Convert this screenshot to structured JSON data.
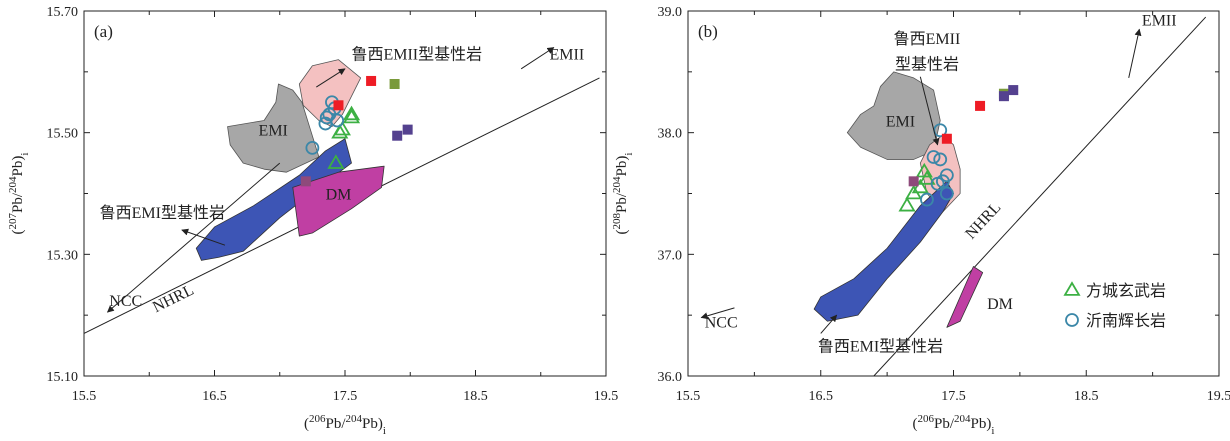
{
  "colors": {
    "emi_field": "#a7a7a7",
    "emii_field": "#f4c1c1",
    "dm_field": "#c03fa3",
    "luxi_emi_field": "#3d55b5",
    "triangle": "#3cb043",
    "circle": "#3b87a8",
    "square_red": "#ee1c25",
    "square_olive": "#7a9a3a",
    "square_purple": "#54418f",
    "square_mauve": "#8e4a7b"
  },
  "legend": {
    "placement": "bottom-right of panel (b)",
    "items": [
      {
        "symbol": "triangle",
        "label": "方城玄武岩"
      },
      {
        "symbol": "circle",
        "label": "沂南辉长岩"
      }
    ]
  },
  "chart_data": [
    {
      "type": "scatter",
      "panel_label": "(a)",
      "xlabel": {
        "pre": "(",
        "sup1": "206",
        "mid": "Pb/",
        "sup2": "204",
        "post": "Pb)",
        "sub": "i"
      },
      "ylabel": {
        "pre": "(",
        "sup1": "207",
        "mid": "Pb/",
        "sup2": "204",
        "post": "Pb)",
        "sub": "i"
      },
      "xlim": [
        15.5,
        19.5
      ],
      "ylim": [
        15.1,
        15.7
      ],
      "xticks": [
        "15.5",
        "16.5",
        "17.5",
        "18.5",
        "19.5"
      ],
      "yticks": [
        "15.10",
        "15.30",
        "15.50",
        "15.70"
      ],
      "grid": false,
      "reference_line": {
        "name": "NHRL",
        "from": [
          15.5,
          15.17
        ],
        "to": [
          19.45,
          15.59
        ]
      },
      "annotations": [
        {
          "text": "EMI",
          "x": 16.95,
          "y": 15.495
        },
        {
          "text": "DM",
          "x": 17.45,
          "y": 15.39
        },
        {
          "text": "NHRL",
          "x": 16.2,
          "y": 15.22
        },
        {
          "text": "NCC",
          "x": 15.82,
          "y": 15.215
        },
        {
          "text": "EMII",
          "x": 19.2,
          "y": 15.62
        },
        {
          "text": "鲁西EMII型基性岩",
          "x": 18.05,
          "y": 15.62
        },
        {
          "text": "鲁西EMI型基性岩",
          "x": 16.1,
          "y": 15.36
        }
      ],
      "arrows": [
        {
          "from": [
            17.0,
            15.45
          ],
          "to": [
            15.68,
            15.205
          ]
        },
        {
          "from": [
            18.85,
            15.605
          ],
          "to": [
            19.1,
            15.64
          ]
        },
        {
          "from": [
            17.28,
            15.575
          ],
          "to": [
            17.5,
            15.605
          ]
        },
        {
          "from": [
            16.58,
            15.315
          ],
          "to": [
            16.25,
            15.34
          ]
        }
      ],
      "fields": [
        {
          "name": "EMI",
          "points": [
            [
              16.6,
              15.51
            ],
            [
              16.88,
              15.52
            ],
            [
              16.97,
              15.55
            ],
            [
              16.99,
              15.58
            ],
            [
              17.1,
              15.57
            ],
            [
              17.17,
              15.55
            ],
            [
              17.3,
              15.46
            ],
            [
              17.05,
              15.435
            ],
            [
              16.88,
              15.44
            ],
            [
              16.72,
              15.45
            ],
            [
              16.62,
              15.48
            ]
          ]
        },
        {
          "name": "EMII",
          "points": [
            [
              17.15,
              15.58
            ],
            [
              17.25,
              15.61
            ],
            [
              17.45,
              15.62
            ],
            [
              17.62,
              15.59
            ],
            [
              17.55,
              15.56
            ],
            [
              17.48,
              15.53
            ],
            [
              17.4,
              15.51
            ],
            [
              17.3,
              15.52
            ],
            [
              17.18,
              15.545
            ]
          ]
        },
        {
          "name": "鲁西EMI型基性岩",
          "points": [
            [
              16.36,
              15.31
            ],
            [
              16.5,
              15.345
            ],
            [
              16.8,
              15.38
            ],
            [
              17.15,
              15.43
            ],
            [
              17.35,
              15.47
            ],
            [
              17.5,
              15.49
            ],
            [
              17.55,
              15.45
            ],
            [
              17.3,
              15.41
            ],
            [
              17.0,
              15.36
            ],
            [
              16.72,
              15.305
            ],
            [
              16.53,
              15.295
            ],
            [
              16.4,
              15.29
            ]
          ]
        },
        {
          "name": "DM",
          "points": [
            [
              17.1,
              15.41
            ],
            [
              17.45,
              15.435
            ],
            [
              17.8,
              15.445
            ],
            [
              17.78,
              15.41
            ],
            [
              17.55,
              15.375
            ],
            [
              17.25,
              15.335
            ],
            [
              17.15,
              15.33
            ]
          ]
        }
      ],
      "series": [
        {
          "name": "方城玄武岩",
          "marker": "triangle",
          "x": [
            17.55,
            17.55,
            17.48,
            17.46,
            17.43
          ],
          "y": [
            15.53,
            15.525,
            15.505,
            15.5,
            15.45
          ]
        },
        {
          "name": "沂南辉长岩",
          "marker": "circle",
          "x": [
            17.4,
            17.42,
            17.38,
            17.36,
            17.44,
            17.35,
            17.25
          ],
          "y": [
            15.55,
            15.54,
            15.53,
            15.525,
            15.52,
            15.515,
            15.475
          ]
        },
        {
          "marker": "square_red",
          "x": [
            17.7,
            17.45
          ],
          "y": [
            15.585,
            15.545
          ]
        },
        {
          "marker": "square_olive",
          "x": [
            17.88
          ],
          "y": [
            15.58
          ]
        },
        {
          "marker": "square_purple",
          "x": [
            17.9,
            17.98
          ],
          "y": [
            15.495,
            15.505
          ]
        },
        {
          "marker": "square_mauve",
          "x": [
            17.2
          ],
          "y": [
            15.42
          ]
        }
      ]
    },
    {
      "type": "scatter",
      "panel_label": "(b)",
      "xlabel": {
        "pre": "(",
        "sup1": "206",
        "mid": "Pb/",
        "sup2": "204",
        "post": "Pb)",
        "sub": "i"
      },
      "ylabel": {
        "pre": "(",
        "sup1": "208",
        "mid": "Pb/",
        "sup2": "204",
        "post": "Pb)",
        "sub": "i"
      },
      "xlim": [
        15.5,
        19.5
      ],
      "ylim": [
        36.0,
        39.0
      ],
      "xticks": [
        "15.5",
        "16.5",
        "17.5",
        "18.5",
        "19.5"
      ],
      "yticks": [
        "36.0",
        "37.0",
        "38.0",
        "39.0"
      ],
      "grid": false,
      "reference_line": {
        "name": "NHRL",
        "from": [
          16.9,
          36.0
        ],
        "to": [
          19.4,
          38.95
        ]
      },
      "annotations": [
        {
          "text": "EMI",
          "x": 17.1,
          "y": 38.05
        },
        {
          "text": "DM",
          "x": 17.85,
          "y": 36.55
        },
        {
          "text": "NHRL",
          "x": 17.75,
          "y": 37.25
        },
        {
          "text": "NCC",
          "x": 15.75,
          "y": 36.4
        },
        {
          "text": "EMII",
          "x": 19.05,
          "y": 38.88
        },
        {
          "text": "鲁西EMII",
          "x": 17.3,
          "y": 38.73
        },
        {
          "text": "型基性岩",
          "x": 17.3,
          "y": 38.52
        },
        {
          "text": "鲁西EMI型基性岩",
          "x": 16.95,
          "y": 36.2
        }
      ],
      "arrows": [
        {
          "from": [
            15.85,
            36.56
          ],
          "to": [
            15.6,
            36.48
          ]
        },
        {
          "from": [
            18.82,
            38.45
          ],
          "to": [
            18.9,
            38.85
          ]
        },
        {
          "from": [
            17.25,
            38.46
          ],
          "to": [
            17.38,
            37.9
          ]
        },
        {
          "from": [
            16.5,
            36.35
          ],
          "to": [
            16.62,
            36.5
          ]
        }
      ],
      "fields": [
        {
          "name": "EMI",
          "points": [
            [
              16.95,
              38.38
            ],
            [
              17.05,
              38.5
            ],
            [
              17.2,
              38.45
            ],
            [
              17.35,
              38.35
            ],
            [
              17.4,
              38.1
            ],
            [
              17.35,
              37.85
            ],
            [
              17.2,
              37.78
            ],
            [
              17.0,
              37.78
            ],
            [
              16.8,
              37.88
            ],
            [
              16.7,
              38.0
            ],
            [
              16.8,
              38.15
            ],
            [
              16.9,
              38.22
            ]
          ]
        },
        {
          "name": "EMII",
          "points": [
            [
              17.32,
              37.9
            ],
            [
              17.42,
              37.98
            ],
            [
              17.5,
              37.9
            ],
            [
              17.55,
              37.7
            ],
            [
              17.55,
              37.5
            ],
            [
              17.42,
              37.35
            ],
            [
              17.3,
              37.5
            ],
            [
              17.25,
              37.75
            ]
          ]
        },
        {
          "name": "鲁西EMI型基性岩",
          "points": [
            [
              16.45,
              36.55
            ],
            [
              16.5,
              36.65
            ],
            [
              16.75,
              36.8
            ],
            [
              17.0,
              37.05
            ],
            [
              17.25,
              37.4
            ],
            [
              17.45,
              37.6
            ],
            [
              17.5,
              37.5
            ],
            [
              17.42,
              37.35
            ],
            [
              17.25,
              37.1
            ],
            [
              17.0,
              36.8
            ],
            [
              16.78,
              36.5
            ],
            [
              16.55,
              36.45
            ]
          ]
        },
        {
          "name": "DM",
          "points": [
            [
              17.45,
              36.4
            ],
            [
              17.65,
              36.9
            ],
            [
              17.72,
              36.85
            ],
            [
              17.55,
              36.45
            ]
          ]
        }
      ],
      "series": [
        {
          "name": "方城玄武岩",
          "marker": "triangle",
          "x": [
            17.28,
            17.3,
            17.25,
            17.2,
            17.15
          ],
          "y": [
            37.68,
            37.62,
            37.55,
            37.5,
            37.4
          ]
        },
        {
          "name": "沂南辉长岩",
          "marker": "circle",
          "x": [
            17.4,
            17.35,
            17.4,
            17.45,
            17.42,
            17.38,
            17.45,
            17.3
          ],
          "y": [
            38.02,
            37.8,
            37.78,
            37.65,
            37.6,
            37.58,
            37.5,
            37.45
          ]
        },
        {
          "marker": "square_red",
          "x": [
            17.7,
            17.45
          ],
          "y": [
            38.22,
            37.95
          ]
        },
        {
          "marker": "square_olive",
          "x": [
            17.88
          ],
          "y": [
            38.32
          ]
        },
        {
          "marker": "square_purple",
          "x": [
            17.88,
            17.95
          ],
          "y": [
            38.3,
            38.35
          ]
        },
        {
          "marker": "square_mauve",
          "x": [
            17.2
          ],
          "y": [
            37.6
          ]
        }
      ]
    }
  ]
}
